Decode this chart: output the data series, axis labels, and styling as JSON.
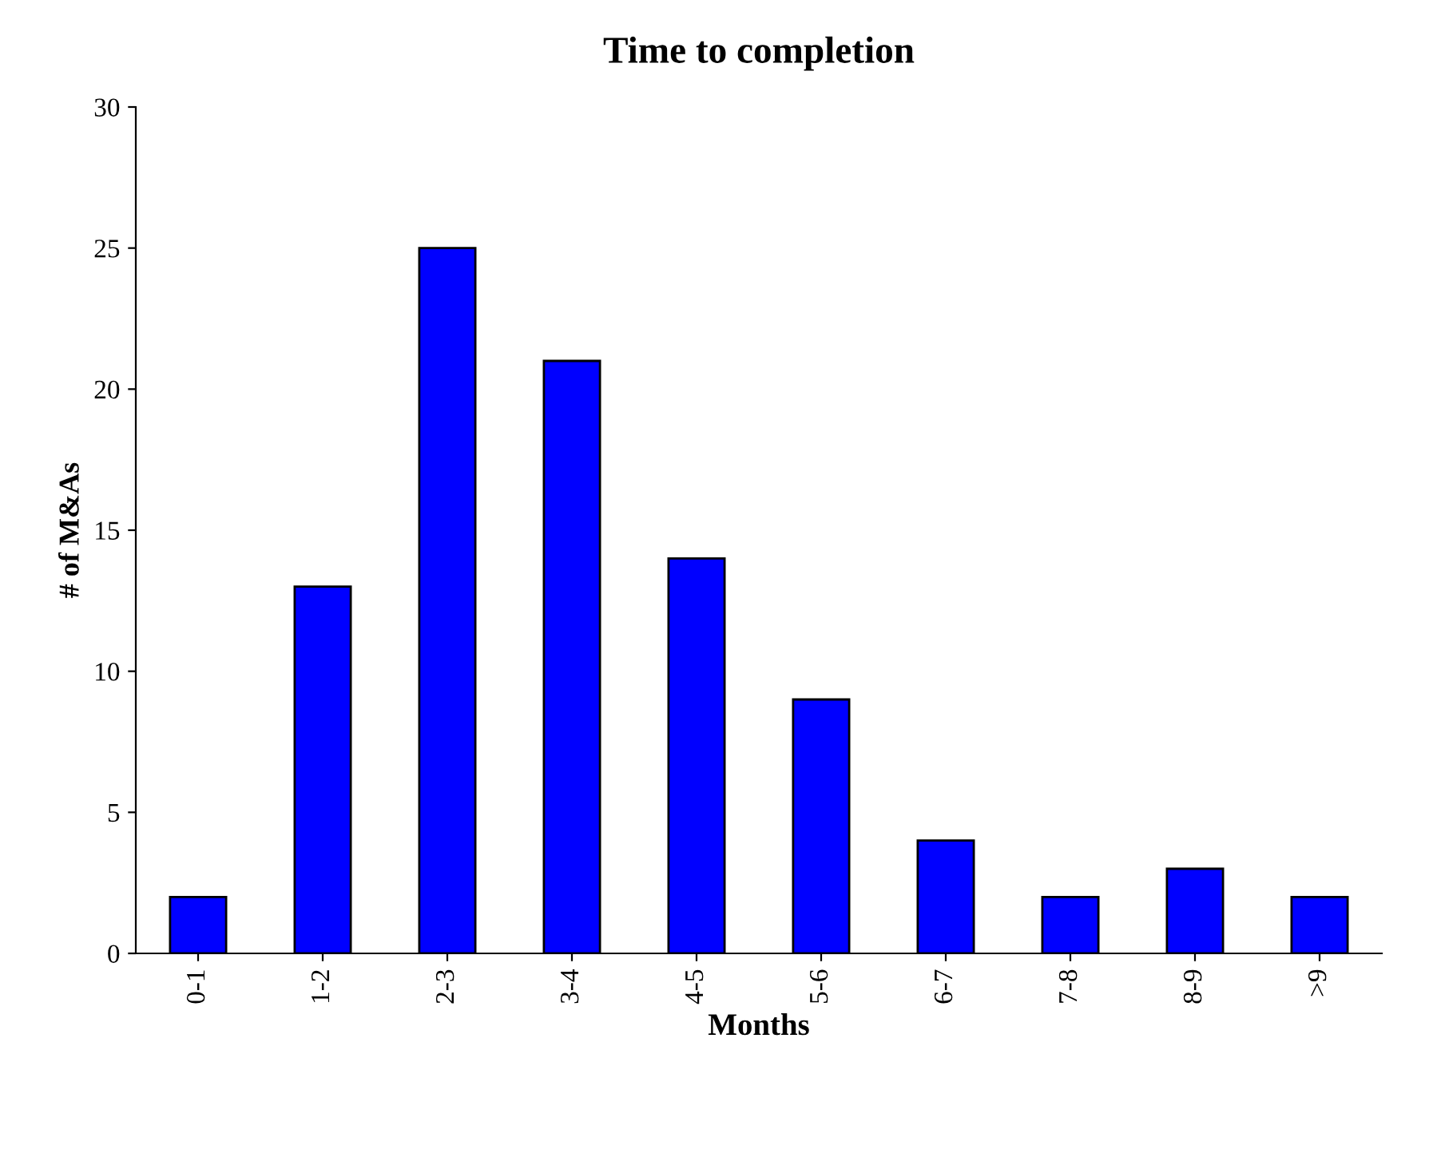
{
  "chart_data": {
    "type": "bar",
    "title": "Time to completion",
    "xlabel": "Months",
    "ylabel": "# of M&As",
    "categories": [
      "0-1",
      "1-2",
      "2-3",
      "3-4",
      "4-5",
      "5-6",
      "6-7",
      "7-8",
      "8-9",
      ">9"
    ],
    "values": [
      2,
      13,
      25,
      21,
      14,
      9,
      4,
      2,
      3,
      2
    ],
    "color": "#0000ff",
    "ylim": [
      0,
      30
    ],
    "yticks": [
      0,
      5,
      10,
      15,
      20,
      25,
      30
    ],
    "grid": false,
    "legend": false
  }
}
